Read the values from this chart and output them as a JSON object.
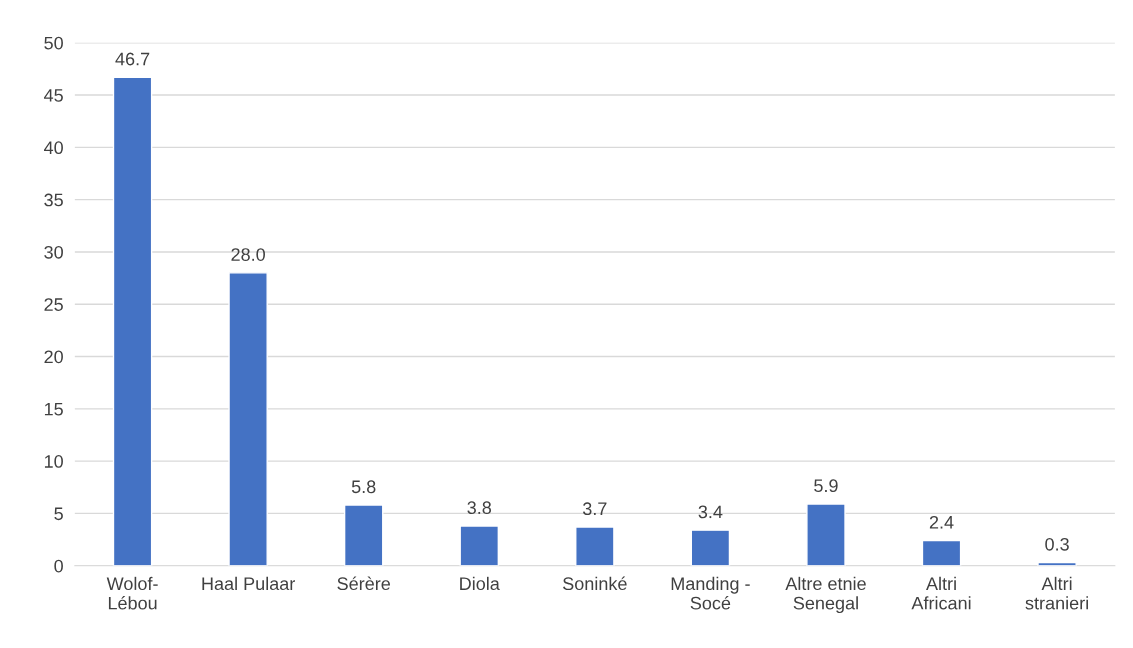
{
  "chart_data": {
    "type": "bar",
    "categories": [
      "Wolof-\nLébou",
      "Haal Pulaar",
      "Sérère",
      "Diola",
      "Soninké",
      "Manding -\nSocé",
      "Altre etnie\nSenegal",
      "Altri\nAfricani",
      "Altri\nstranieri"
    ],
    "values": [
      46.7,
      28.0,
      5.8,
      3.8,
      3.7,
      3.4,
      5.9,
      2.4,
      0.3
    ],
    "value_labels": [
      "46.7",
      "28.0",
      "5.8",
      "3.8",
      "3.7",
      "3.4",
      "5.9",
      "2.4",
      "0.3"
    ],
    "color": "#4472c4",
    "ylim": [
      0,
      50
    ],
    "yticks": [
      0,
      5,
      10,
      15,
      20,
      25,
      30,
      35,
      40,
      45,
      50
    ],
    "grid": "y",
    "legend": false
  }
}
